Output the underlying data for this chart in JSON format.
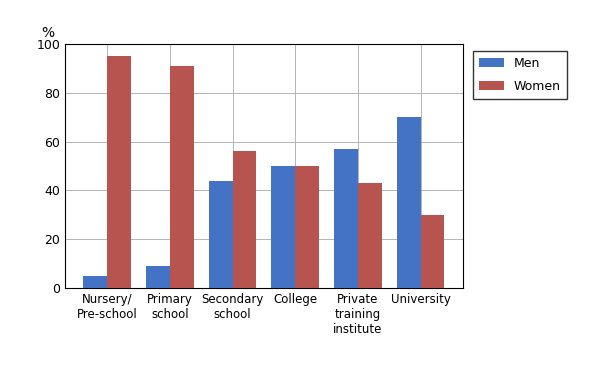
{
  "categories": [
    "Nursery/\nPre-school",
    "Primary\nschool",
    "Secondary\nschool",
    "College",
    "Private\ntraining\ninstitute",
    "University"
  ],
  "men_values": [
    5,
    9,
    44,
    50,
    57,
    70
  ],
  "women_values": [
    95,
    91,
    56,
    50,
    43,
    30
  ],
  "men_color": "#4472C4",
  "women_color": "#B85450",
  "percent_label": "%",
  "ylim": [
    0,
    100
  ],
  "yticks": [
    0,
    20,
    40,
    60,
    80,
    100
  ],
  "legend_men": "Men",
  "legend_women": "Women",
  "bar_width": 0.38,
  "figsize": [
    5.93,
    3.69
  ],
  "dpi": 100
}
